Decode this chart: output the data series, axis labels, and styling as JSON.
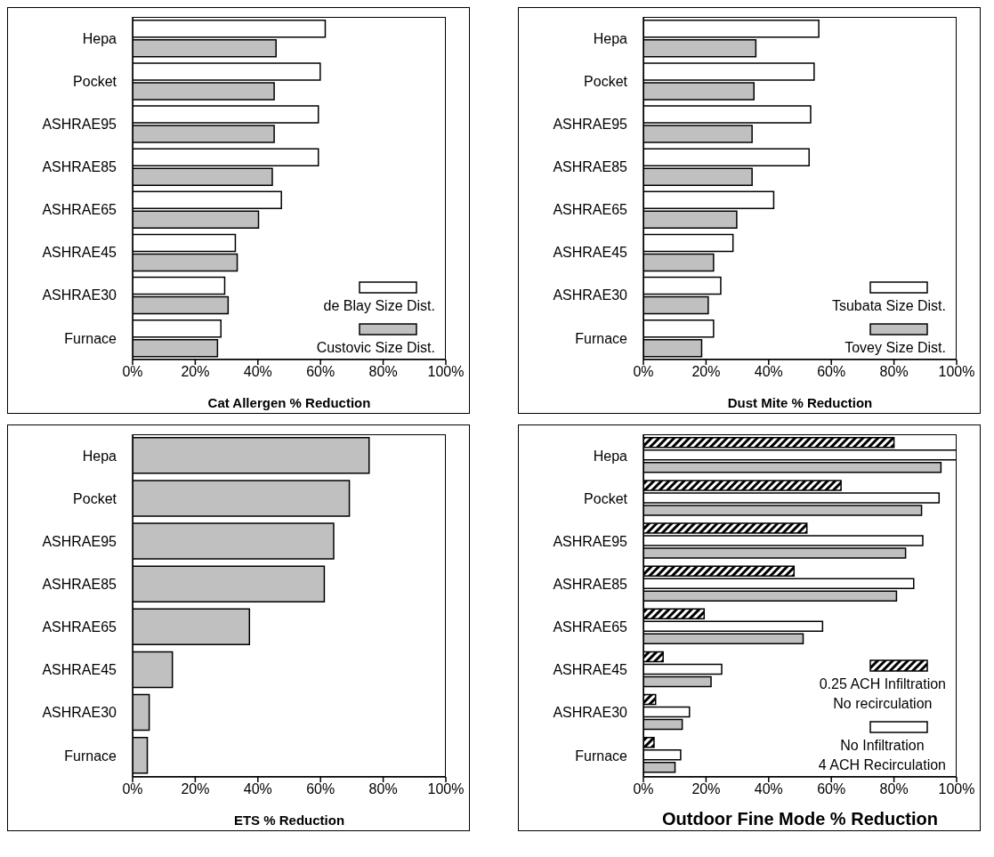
{
  "chart_data": [
    {
      "type": "bar",
      "orientation": "horizontal",
      "xlabel": "Cat Allergen % Reduction",
      "categories": [
        "Hepa",
        "Pocket",
        "ASHRAE95",
        "ASHRAE85",
        "ASHRAE65",
        "ASHRAE45",
        "ASHRAE30",
        "Furnace"
      ],
      "series": [
        {
          "name": "de Blay Size Dist.",
          "color": "#ffffff",
          "values": [
            61.5,
            59.9,
            59.3,
            59.3,
            47.5,
            32.8,
            29.4,
            28.2
          ]
        },
        {
          "name": "Custovic Size Dist.",
          "color": "#c0c0c0",
          "values": [
            45.8,
            45.2,
            45.2,
            44.6,
            40.2,
            33.4,
            30.5,
            27.1
          ]
        }
      ],
      "xlim": [
        0,
        100
      ],
      "xticks": [
        {
          "value": 0,
          "label": "0%"
        },
        {
          "value": 20,
          "label": "20%"
        },
        {
          "value": 40,
          "label": "40%"
        },
        {
          "value": 60,
          "label": "60%"
        },
        {
          "value": 80,
          "label": "80%"
        },
        {
          "value": 100,
          "label": "100%"
        }
      ],
      "legend": "bottom right"
    },
    {
      "type": "bar",
      "orientation": "horizontal",
      "xlabel": "Dust Mite % Reduction",
      "categories": [
        "Hepa",
        "Pocket",
        "ASHRAE95",
        "ASHRAE85",
        "ASHRAE65",
        "ASHRAE45",
        "ASHRAE30",
        "Furnace"
      ],
      "series": [
        {
          "name": "Tsubata Size Dist.",
          "color": "#ffffff",
          "values": [
            56,
            54.5,
            53.4,
            52.9,
            41.6,
            28.6,
            24.7,
            22.4
          ]
        },
        {
          "name": "Tovey Size Dist.",
          "color": "#c0c0c0",
          "values": [
            35.9,
            35.3,
            34.7,
            34.7,
            29.8,
            22.4,
            20.7,
            18.6
          ]
        }
      ],
      "xlim": [
        0,
        100
      ],
      "xticks": [
        {
          "value": 0,
          "label": "0%"
        },
        {
          "value": 20,
          "label": "20%"
        },
        {
          "value": 40,
          "label": "40%"
        },
        {
          "value": 60,
          "label": "60%"
        },
        {
          "value": 80,
          "label": "80%"
        },
        {
          "value": 100,
          "label": "100%"
        }
      ],
      "legend": "bottom right"
    },
    {
      "type": "bar",
      "orientation": "horizontal",
      "xlabel": "ETS % Reduction",
      "categories": [
        "Hepa",
        "Pocket",
        "ASHRAE95",
        "ASHRAE85",
        "ASHRAE65",
        "ASHRAE45",
        "ASHRAE30",
        "Furnace"
      ],
      "series": [
        {
          "color": "#c0c0c0",
          "values": [
            75.5,
            69.2,
            64.2,
            61.2,
            37.3,
            12.7,
            5.3,
            4.7
          ]
        }
      ],
      "xlim": [
        0,
        100
      ],
      "xticks": [
        {
          "value": 0,
          "label": "0%"
        },
        {
          "value": 20,
          "label": "20%"
        },
        {
          "value": 40,
          "label": "40%"
        },
        {
          "value": 60,
          "label": "60%"
        },
        {
          "value": 80,
          "label": "80%"
        },
        {
          "value": 100,
          "label": "100%"
        }
      ]
    },
    {
      "type": "bar",
      "orientation": "horizontal",
      "xlabel": "Outdoor Fine Mode % Reduction",
      "categories": [
        "Hepa",
        "Pocket",
        "ASHRAE95",
        "ASHRAE85",
        "ASHRAE65",
        "ASHRAE45",
        "ASHRAE30",
        "Furnace"
      ],
      "series": [
        {
          "name": "0.25 ACH Infiltration\nNo recirculation",
          "color": "#000000",
          "values": [
            80,
            63.1,
            52.2,
            48.1,
            19.4,
            6.3,
            3.9,
            3.4
          ]
        },
        {
          "name": "No Infiltration\n4 ACH Recirculation",
          "color": "#ffffff",
          "values": [
            100,
            94.4,
            89.2,
            86.3,
            57.2,
            25,
            14.7,
            11.9
          ]
        },
        {
          "color": "#c0c0c0",
          "values": [
            95,
            88.8,
            83.7,
            80.8,
            51,
            21.6,
            12.4,
            10.1
          ]
        }
      ],
      "xlim": [
        0,
        100
      ],
      "xticks": [
        {
          "value": 0,
          "label": "0%"
        },
        {
          "value": 20,
          "label": "20%"
        },
        {
          "value": 40,
          "label": "40%"
        },
        {
          "value": 60,
          "label": "60%"
        },
        {
          "value": 80,
          "label": "80%"
        },
        {
          "value": 100,
          "label": "100%"
        }
      ],
      "legend": "bottom right"
    }
  ]
}
